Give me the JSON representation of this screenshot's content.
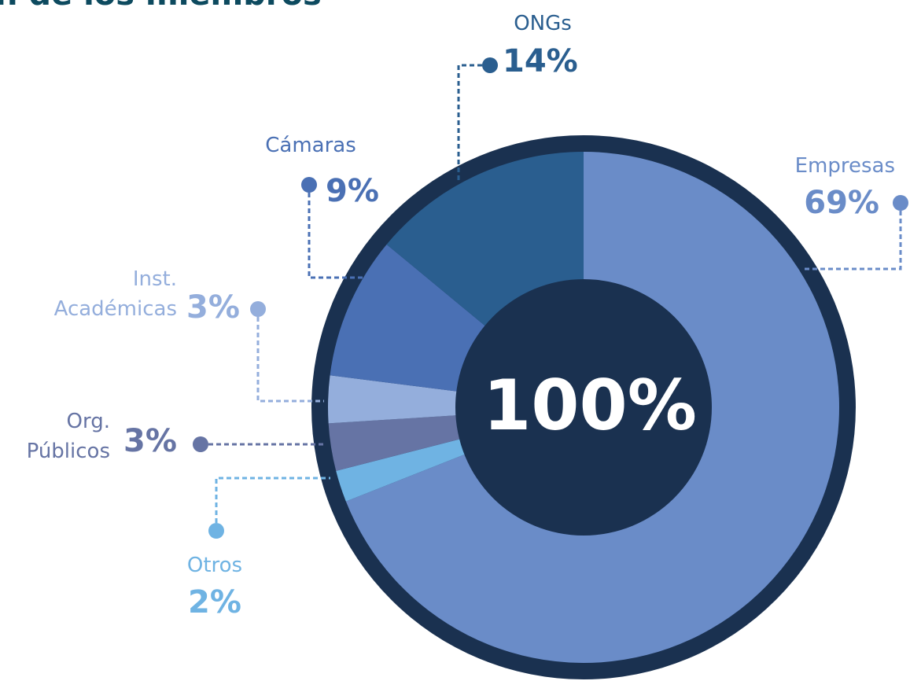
{
  "chart_data": {
    "type": "donut",
    "title": "n de los miembros",
    "center_label": "100%",
    "categories": [
      "Empresas",
      "Otros",
      "Org. Públicos",
      "Inst. Académicas",
      "Cámaras",
      "ONGs"
    ],
    "values": [
      69,
      2,
      3,
      3,
      9,
      14
    ],
    "value_labels": [
      "69%",
      "2%",
      "3%",
      "3%",
      "9%",
      "14%"
    ],
    "colors": [
      "#6a8cc8",
      "#6fb3e3",
      "#6674a4",
      "#94aedc",
      "#4a70b4",
      "#2a5e8f"
    ]
  }
}
